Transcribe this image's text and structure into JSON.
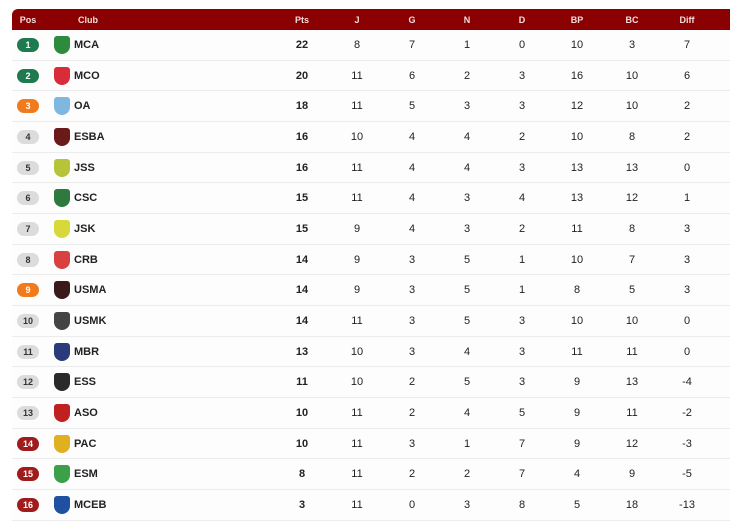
{
  "colors": {
    "header": "#8b0000",
    "champion": "#1f7a50",
    "continental": "#f07a1c",
    "neutral": "#dcdcdc",
    "relegation": "#a01c1c"
  },
  "headers": {
    "pos": "Pos",
    "club": "Club",
    "pts": "Pts",
    "j": "J",
    "g": "G",
    "n": "N",
    "d": "D",
    "bp": "BP",
    "bc": "BC",
    "diff": "Diff"
  },
  "rows": [
    {
      "pos": "1",
      "club": "MCA",
      "pts": "22",
      "j": "8",
      "g": "7",
      "n": "1",
      "d": "0",
      "bp": "10",
      "bc": "3",
      "diff": "7",
      "zone": "champion",
      "logo": "#2e8b3e"
    },
    {
      "pos": "2",
      "club": "MCO",
      "pts": "20",
      "j": "11",
      "g": "6",
      "n": "2",
      "d": "3",
      "bp": "16",
      "bc": "10",
      "diff": "6",
      "zone": "champion",
      "logo": "#d92b3a"
    },
    {
      "pos": "3",
      "club": "OA",
      "pts": "18",
      "j": "11",
      "g": "5",
      "n": "3",
      "d": "3",
      "bp": "12",
      "bc": "10",
      "diff": "2",
      "zone": "continental",
      "logo": "#7fb7e0"
    },
    {
      "pos": "4",
      "club": "ESBA",
      "pts": "16",
      "j": "10",
      "g": "4",
      "n": "4",
      "d": "2",
      "bp": "10",
      "bc": "8",
      "diff": "2",
      "zone": "neutral",
      "logo": "#6b1a1a"
    },
    {
      "pos": "5",
      "club": "JSS",
      "pts": "16",
      "j": "11",
      "g": "4",
      "n": "4",
      "d": "3",
      "bp": "13",
      "bc": "13",
      "diff": "0",
      "zone": "neutral",
      "logo": "#b6c43a"
    },
    {
      "pos": "6",
      "club": "CSC",
      "pts": "15",
      "j": "11",
      "g": "4",
      "n": "3",
      "d": "4",
      "bp": "13",
      "bc": "12",
      "diff": "1",
      "zone": "neutral",
      "logo": "#2e7a3e"
    },
    {
      "pos": "7",
      "club": "JSK",
      "pts": "15",
      "j": "9",
      "g": "4",
      "n": "3",
      "d": "2",
      "bp": "11",
      "bc": "8",
      "diff": "3",
      "zone": "neutral",
      "logo": "#d8d83a"
    },
    {
      "pos": "8",
      "club": "CRB",
      "pts": "14",
      "j": "9",
      "g": "3",
      "n": "5",
      "d": "1",
      "bp": "10",
      "bc": "7",
      "diff": "3",
      "zone": "neutral",
      "logo": "#d94040"
    },
    {
      "pos": "9",
      "club": "USMA",
      "pts": "14",
      "j": "9",
      "g": "3",
      "n": "5",
      "d": "1",
      "bp": "8",
      "bc": "5",
      "diff": "3",
      "zone": "continental",
      "logo": "#3a1a1a"
    },
    {
      "pos": "10",
      "club": "USMK",
      "pts": "14",
      "j": "11",
      "g": "3",
      "n": "5",
      "d": "3",
      "bp": "10",
      "bc": "10",
      "diff": "0",
      "zone": "neutral",
      "logo": "#444444"
    },
    {
      "pos": "11",
      "club": "MBR",
      "pts": "13",
      "j": "10",
      "g": "3",
      "n": "4",
      "d": "3",
      "bp": "11",
      "bc": "11",
      "diff": "0",
      "zone": "neutral",
      "logo": "#2a3a7a"
    },
    {
      "pos": "12",
      "club": "ESS",
      "pts": "11",
      "j": "10",
      "g": "2",
      "n": "5",
      "d": "3",
      "bp": "9",
      "bc": "13",
      "diff": "-4",
      "zone": "neutral",
      "logo": "#2a2a2a"
    },
    {
      "pos": "13",
      "club": "ASO",
      "pts": "10",
      "j": "11",
      "g": "2",
      "n": "4",
      "d": "5",
      "bp": "9",
      "bc": "11",
      "diff": "-2",
      "zone": "neutral",
      "logo": "#c02020"
    },
    {
      "pos": "14",
      "club": "PAC",
      "pts": "10",
      "j": "11",
      "g": "3",
      "n": "1",
      "d": "7",
      "bp": "9",
      "bc": "12",
      "diff": "-3",
      "zone": "relegation",
      "logo": "#e0b020"
    },
    {
      "pos": "15",
      "club": "ESM",
      "pts": "8",
      "j": "11",
      "g": "2",
      "n": "2",
      "d": "7",
      "bp": "4",
      "bc": "9",
      "diff": "-5",
      "zone": "relegation",
      "logo": "#3aa04a"
    },
    {
      "pos": "16",
      "club": "MCEB",
      "pts": "3",
      "j": "11",
      "g": "0",
      "n": "3",
      "d": "8",
      "bp": "5",
      "bc": "18",
      "diff": "-13",
      "zone": "relegation",
      "logo": "#2050a0"
    }
  ]
}
